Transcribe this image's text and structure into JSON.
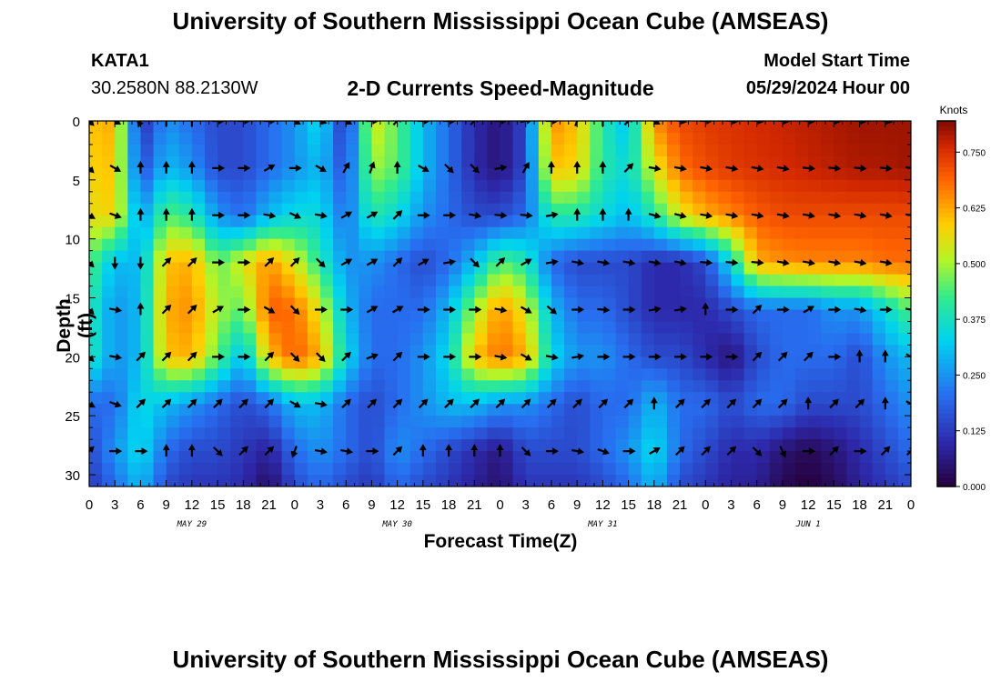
{
  "header": {
    "title": "University of Southern Mississippi Ocean Cube (AMSEAS)",
    "station_id": "KATA1",
    "coordinates": "30.2580N  88.2130W",
    "subtitle": "2-D Currents Speed-Magnitude",
    "model_start_label": "Model Start Time",
    "model_start_value": "05/29/2024 Hour 00"
  },
  "footer": {
    "title": "University of Southern Mississippi Ocean Cube (AMSEAS)"
  },
  "chart_data": {
    "type": "heatmap",
    "title": "2-D Currents Speed-Magnitude",
    "xlabel": "Forecast Time(Z)",
    "ylabel": "Depth (ft)",
    "x_hours": [
      0,
      96
    ],
    "x_ticks": [
      "0",
      "3",
      "6",
      "9",
      "12",
      "15",
      "18",
      "21",
      "0",
      "3",
      "6",
      "9",
      "12",
      "15",
      "18",
      "21",
      "0",
      "3",
      "6",
      "9",
      "12",
      "15",
      "18",
      "21",
      "0",
      "3",
      "6",
      "9",
      "12",
      "15",
      "18",
      "21",
      "0"
    ],
    "date_labels": [
      {
        "label": "MAY 29",
        "hour": 12
      },
      {
        "label": "MAY 30",
        "hour": 36
      },
      {
        "label": "MAY 31",
        "hour": 60
      },
      {
        "label": "JUN 1",
        "hour": 84
      }
    ],
    "depth_range": [
      0,
      31
    ],
    "y_ticks": [
      "0",
      "5",
      "10",
      "15",
      "20",
      "25",
      "30"
    ],
    "colorbar": {
      "label": "Knots",
      "ticks": [
        "0.000",
        "0.125",
        "0.250",
        "0.375",
        "0.500",
        "0.625",
        "0.750"
      ],
      "range": [
        0,
        0.82
      ]
    },
    "depth_rows": [
      0,
      4,
      8,
      12,
      16,
      20,
      24,
      28,
      31
    ],
    "time_cols": [
      0,
      3,
      6,
      9,
      12,
      15,
      18,
      21,
      24,
      27,
      30,
      33,
      36,
      39,
      42,
      45,
      48,
      51,
      54,
      57,
      60,
      63,
      66,
      69,
      72,
      75,
      78,
      81,
      84,
      87,
      90,
      93,
      96
    ],
    "speed_knots": [
      [
        0.6,
        0.62,
        0.1,
        0.25,
        0.2,
        0.15,
        0.15,
        0.2,
        0.25,
        0.35,
        0.1,
        0.55,
        0.45,
        0.3,
        0.2,
        0.1,
        0.05,
        0.15,
        0.65,
        0.6,
        0.4,
        0.3,
        0.65,
        0.72,
        0.74,
        0.75,
        0.76,
        0.77,
        0.78,
        0.79,
        0.8,
        0.8,
        0.8
      ],
      [
        0.58,
        0.6,
        0.15,
        0.3,
        0.25,
        0.15,
        0.15,
        0.2,
        0.25,
        0.3,
        0.15,
        0.5,
        0.45,
        0.3,
        0.2,
        0.1,
        0.05,
        0.15,
        0.6,
        0.58,
        0.4,
        0.35,
        0.55,
        0.68,
        0.72,
        0.74,
        0.75,
        0.76,
        0.77,
        0.78,
        0.79,
        0.79,
        0.8
      ],
      [
        0.56,
        0.58,
        0.25,
        0.45,
        0.4,
        0.25,
        0.2,
        0.3,
        0.35,
        0.35,
        0.2,
        0.4,
        0.35,
        0.25,
        0.2,
        0.15,
        0.15,
        0.2,
        0.4,
        0.4,
        0.35,
        0.3,
        0.4,
        0.55,
        0.62,
        0.66,
        0.7,
        0.72,
        0.72,
        0.72,
        0.72,
        0.72,
        0.72
      ],
      [
        0.45,
        0.3,
        0.3,
        0.6,
        0.62,
        0.45,
        0.55,
        0.65,
        0.55,
        0.4,
        0.25,
        0.25,
        0.2,
        0.15,
        0.2,
        0.3,
        0.45,
        0.4,
        0.2,
        0.15,
        0.15,
        0.15,
        0.1,
        0.1,
        0.15,
        0.35,
        0.62,
        0.65,
        0.66,
        0.66,
        0.66,
        0.68,
        0.68
      ],
      [
        0.4,
        0.25,
        0.3,
        0.62,
        0.65,
        0.5,
        0.45,
        0.7,
        0.68,
        0.55,
        0.3,
        0.2,
        0.2,
        0.2,
        0.3,
        0.5,
        0.65,
        0.55,
        0.3,
        0.2,
        0.2,
        0.15,
        0.1,
        0.1,
        0.1,
        0.15,
        0.2,
        0.2,
        0.2,
        0.25,
        0.25,
        0.35,
        0.45
      ],
      [
        0.4,
        0.25,
        0.3,
        0.6,
        0.62,
        0.45,
        0.3,
        0.6,
        0.7,
        0.62,
        0.35,
        0.2,
        0.2,
        0.25,
        0.35,
        0.6,
        0.68,
        0.62,
        0.35,
        0.25,
        0.25,
        0.2,
        0.15,
        0.15,
        0.1,
        0.05,
        0.15,
        0.2,
        0.2,
        0.2,
        0.15,
        0.25,
        0.3
      ],
      [
        0.2,
        0.2,
        0.35,
        0.3,
        0.25,
        0.2,
        0.15,
        0.2,
        0.3,
        0.3,
        0.2,
        0.15,
        0.2,
        0.25,
        0.3,
        0.3,
        0.25,
        0.25,
        0.2,
        0.15,
        0.2,
        0.2,
        0.3,
        0.2,
        0.2,
        0.15,
        0.2,
        0.2,
        0.15,
        0.15,
        0.15,
        0.2,
        0.25
      ],
      [
        0.15,
        0.25,
        0.35,
        0.2,
        0.15,
        0.15,
        0.12,
        0.08,
        0.2,
        0.25,
        0.2,
        0.15,
        0.25,
        0.2,
        0.15,
        0.1,
        0.06,
        0.15,
        0.15,
        0.15,
        0.2,
        0.25,
        0.35,
        0.2,
        0.15,
        0.1,
        0.1,
        0.05,
        0.02,
        0.05,
        0.1,
        0.15,
        0.2
      ],
      [
        0.12,
        0.2,
        0.3,
        0.15,
        0.12,
        0.12,
        0.1,
        0.03,
        0.15,
        0.2,
        0.15,
        0.12,
        0.2,
        0.15,
        0.12,
        0.08,
        0.04,
        0.12,
        0.12,
        0.12,
        0.15,
        0.2,
        0.3,
        0.15,
        0.12,
        0.08,
        0.08,
        0.02,
        0.0,
        0.03,
        0.08,
        0.12,
        0.15
      ]
    ],
    "arrow_depths": [
      0,
      4,
      8,
      12,
      16,
      20,
      24,
      28
    ],
    "arrow_hours": [
      0,
      3,
      6,
      9,
      12,
      15,
      18,
      21,
      24,
      27,
      30,
      33,
      36,
      39,
      42,
      45,
      48,
      51,
      54,
      57,
      60,
      63,
      66,
      69,
      72,
      75,
      78,
      81,
      84,
      87,
      90,
      93,
      96
    ],
    "arrow_direction_deg": [
      [
        135,
        120,
        200,
        0,
        0,
        90,
        90,
        90,
        120,
        110,
        120,
        90,
        45,
        90,
        90,
        45,
        90,
        80,
        90,
        20,
        0,
        45,
        120,
        100,
        90,
        95,
        95,
        95,
        95,
        95,
        95,
        100,
        110
      ],
      [
        135,
        120,
        0,
        0,
        0,
        90,
        90,
        60,
        90,
        120,
        30,
        20,
        0,
        120,
        135,
        135,
        80,
        30,
        0,
        0,
        0,
        45,
        100,
        100,
        100,
        100,
        100,
        100,
        95,
        95,
        95,
        95,
        100
      ],
      [
        120,
        110,
        0,
        0,
        0,
        90,
        90,
        100,
        115,
        100,
        60,
        60,
        45,
        90,
        90,
        100,
        95,
        95,
        80,
        0,
        0,
        0,
        105,
        105,
        100,
        100,
        100,
        100,
        100,
        100,
        100,
        100,
        100
      ],
      [
        135,
        180,
        180,
        45,
        45,
        90,
        90,
        45,
        45,
        135,
        60,
        60,
        45,
        60,
        80,
        135,
        45,
        60,
        80,
        100,
        100,
        100,
        100,
        100,
        95,
        95,
        95,
        100,
        100,
        100,
        100,
        100,
        100
      ],
      [
        135,
        100,
        0,
        45,
        45,
        60,
        90,
        120,
        135,
        90,
        90,
        60,
        60,
        90,
        90,
        90,
        100,
        120,
        130,
        90,
        95,
        90,
        80,
        80,
        0,
        90,
        45,
        90,
        60,
        90,
        100,
        90,
        100
      ],
      [
        135,
        100,
        45,
        45,
        45,
        90,
        90,
        45,
        135,
        135,
        45,
        70,
        45,
        90,
        90,
        90,
        100,
        120,
        100,
        80,
        90,
        90,
        90,
        90,
        90,
        90,
        45,
        45,
        45,
        90,
        0,
        0,
        120
      ],
      [
        120,
        110,
        45,
        45,
        45,
        45,
        45,
        45,
        120,
        100,
        45,
        45,
        45,
        45,
        45,
        45,
        45,
        45,
        45,
        45,
        45,
        45,
        0,
        45,
        45,
        45,
        45,
        45,
        0,
        45,
        45,
        0,
        120
      ],
      [
        45,
        90,
        90,
        0,
        0,
        135,
        45,
        45,
        200,
        100,
        100,
        90,
        45,
        0,
        0,
        0,
        0,
        135,
        90,
        100,
        110,
        90,
        60,
        45,
        45,
        45,
        135,
        155,
        90,
        45,
        90,
        45,
        45
      ]
    ]
  }
}
